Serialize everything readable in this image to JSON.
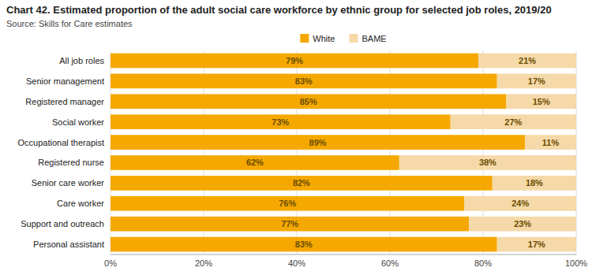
{
  "chart_data": {
    "type": "bar",
    "orientation": "horizontal",
    "stacked": true,
    "title": "Chart 42. Estimated proportion of the adult social care workforce by ethnic group for selected job roles, 2019/20",
    "source": "Source: Skills for Care estimates",
    "categories": [
      "All job roles",
      "Senior management",
      "Registered manager",
      "Social worker",
      "Occupational therapist",
      "Registered nurse",
      "Senior care worker",
      "Care worker",
      "Support and outreach",
      "Personal assistant"
    ],
    "series": [
      {
        "name": "White",
        "color": "#F5A800",
        "values": [
          79,
          83,
          85,
          73,
          89,
          62,
          82,
          76,
          77,
          83
        ],
        "value_labels": [
          "79%",
          "83%",
          "85%",
          "73%",
          "89%",
          "62%",
          "82%",
          "76%",
          "77%",
          "83%"
        ]
      },
      {
        "name": "BAME",
        "color": "#F5D9A8",
        "values": [
          21,
          17,
          15,
          27,
          11,
          38,
          18,
          24,
          23,
          17
        ],
        "value_labels": [
          "21%",
          "17%",
          "15%",
          "27%",
          "11%",
          "38%",
          "18%",
          "24%",
          "23%",
          "17%"
        ]
      }
    ],
    "xlim": [
      0,
      100
    ],
    "xticks": [
      {
        "value": 0,
        "label": "0%"
      },
      {
        "value": 20,
        "label": "20%"
      },
      {
        "value": 40,
        "label": "40%"
      },
      {
        "value": 60,
        "label": "60%"
      },
      {
        "value": 80,
        "label": "80%"
      },
      {
        "value": 100,
        "label": "100%"
      }
    ],
    "grid": true,
    "legend": "top",
    "data_labels": true
  }
}
